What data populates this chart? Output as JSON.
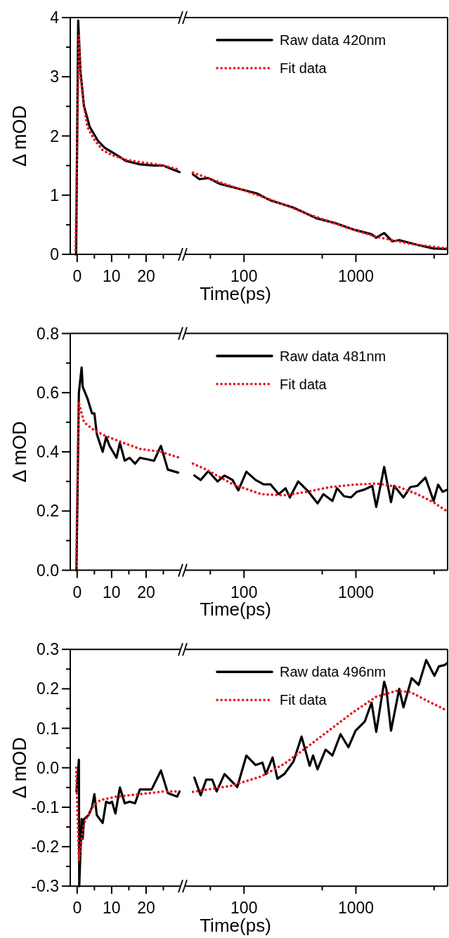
{
  "chart_data": [
    {
      "type": "line",
      "ylabel": "Δ mOD",
      "xlim": [
        -2,
        30
      ],
      "ylim": [
        0,
        4
      ],
      "xticks": [
        0,
        {
          "value": 5,
          "label": null
        },
        10,
        {
          "value": 15,
          "label": null
        },
        20,
        {
          "value": 25,
          "label": null
        }
      ],
      "yticks": [
        0,
        {
          "value": 0.5,
          "label": null
        },
        1,
        {
          "value": 1.5,
          "label": null
        },
        2,
        {
          "value": 2.5,
          "label": null
        },
        3,
        {
          "value": 3.5,
          "label": null
        },
        4
      ],
      "series": [
        {
          "color": "#000000",
          "line_style": "solid",
          "x": [
            -0.3,
            0.3,
            0.95,
            1.96,
            3.6,
            6,
            8,
            11.4,
            14.1,
            18.2,
            22.3,
            25,
            27,
            29.7
          ],
          "values": [
            0,
            3.95,
            3.1,
            2.51,
            2.16,
            1.92,
            1.8,
            1.68,
            1.58,
            1.52,
            1.5,
            1.5,
            1.45,
            1.39
          ]
        },
        {
          "color": "#e8161b",
          "line_style": "dotted",
          "x": [
            -0.5,
            0.5,
            1,
            2,
            3,
            4.7,
            7.4,
            10,
            14,
            18,
            22,
            25,
            29.7
          ],
          "values": [
            0,
            3.7,
            3.0,
            2.5,
            2.15,
            1.96,
            1.76,
            1.68,
            1.6,
            1.56,
            1.53,
            1.5,
            1.43
          ]
        }
      ]
    },
    {
      "type": "line",
      "xlabel": "Time(ps)",
      "log": "x",
      "tick_labels": "x",
      "legend": "top",
      "xlim": [
        30,
        6600
      ],
      "ylim": [
        0,
        4
      ],
      "xticks": [
        {
          "value": 50,
          "label": null
        },
        100,
        {
          "value": 500,
          "label": null
        },
        1000,
        {
          "value": 5000,
          "label": null
        }
      ],
      "series": [
        {
          "name": "Raw data 420nm",
          "color": "#000000",
          "line_style": "solid",
          "x": [
            35,
            40,
            48,
            61,
            74,
            89,
            130,
            173,
            277,
            444,
            647,
            946,
            1380,
            1515,
            1790,
            2110,
            2440,
            3540,
            4920,
            6600
          ],
          "values": [
            1.35,
            1.27,
            1.29,
            1.19,
            1.15,
            1.11,
            1.03,
            0.91,
            0.79,
            0.61,
            0.53,
            0.42,
            0.34,
            0.28,
            0.36,
            0.22,
            0.24,
            0.16,
            0.1,
            0.09
          ]
        },
        {
          "name": "Fit data",
          "color": "#e8161b",
          "line_style": "dotted",
          "x": [
            35,
            60,
            100,
            200,
            400,
            800,
            1500,
            3000,
            6600
          ],
          "values": [
            1.38,
            1.22,
            1.08,
            0.88,
            0.66,
            0.46,
            0.3,
            0.18,
            0.1
          ]
        }
      ]
    },
    {
      "type": "line",
      "ylabel": "Δ mOD",
      "xlim": [
        -2,
        30
      ],
      "ylim": [
        0,
        0.8
      ],
      "xticks": [
        0,
        {
          "value": 5,
          "label": null
        },
        10,
        {
          "value": 15,
          "label": null
        },
        20,
        {
          "value": 25,
          "label": null
        }
      ],
      "yticks": [
        {
          "value": 0,
          "label": "0.0"
        },
        {
          "value": 0.1,
          "label": null
        },
        {
          "value": 0.2,
          "label": "0.2"
        },
        {
          "value": 0.3,
          "label": null
        },
        {
          "value": 0.4,
          "label": "0.4"
        },
        {
          "value": 0.5,
          "label": null
        },
        {
          "value": 0.6,
          "label": "0.6"
        },
        {
          "value": 0.7,
          "label": null
        },
        {
          "value": 0.8,
          "label": "0.8"
        }
      ],
      "series": [
        {
          "color": "#000000",
          "line_style": "solid",
          "x": [
            -0.2,
            0.5,
            1.3,
            1.6,
            3,
            4.3,
            5,
            5.7,
            7.4,
            8.4,
            9.4,
            11.4,
            12.4,
            13.8,
            15.2,
            16.8,
            18.2,
            22.3,
            24.3,
            26.3,
            29.3
          ],
          "values": [
            0,
            0.6,
            0.685,
            0.62,
            0.58,
            0.53,
            0.53,
            0.46,
            0.4,
            0.45,
            0.42,
            0.38,
            0.43,
            0.37,
            0.38,
            0.36,
            0.38,
            0.37,
            0.42,
            0.34,
            0.33
          ]
        },
        {
          "color": "#e8161b",
          "line_style": "dotted",
          "x": [
            -0.3,
            0.4,
            2,
            4.7,
            8,
            13.5,
            18.2,
            24.3,
            29.7
          ],
          "values": [
            0,
            0.57,
            0.5,
            0.475,
            0.455,
            0.43,
            0.41,
            0.4,
            0.38
          ]
        }
      ]
    },
    {
      "type": "line",
      "xlabel": "Time(ps)",
      "log": "x",
      "tick_labels": "x",
      "legend": "top",
      "xlim": [
        30,
        6600
      ],
      "ylim": [
        0,
        0.8
      ],
      "xticks": [
        {
          "value": 50,
          "label": null
        },
        100,
        {
          "value": 500,
          "label": null
        },
        1000,
        {
          "value": 5000,
          "label": null
        }
      ],
      "series": [
        {
          "name": "Raw data 481nm",
          "color": "#000000",
          "line_style": "solid",
          "x": [
            36,
            41,
            48,
            58,
            67,
            79,
            89,
            105,
            127,
            150,
            173,
            204,
            235,
            257,
            305,
            378,
            405,
            455,
            512,
            617,
            678,
            784,
            905,
            1020,
            1200,
            1400,
            1520,
            1790,
            2060,
            2200,
            2660,
            3070,
            3530,
            4180,
            4950,
            5430,
            5960,
            6600
          ],
          "values": [
            0.32,
            0.305,
            0.335,
            0.3,
            0.32,
            0.305,
            0.27,
            0.333,
            0.305,
            0.29,
            0.29,
            0.257,
            0.277,
            0.246,
            0.3,
            0.265,
            0.25,
            0.226,
            0.257,
            0.234,
            0.277,
            0.25,
            0.246,
            0.265,
            0.273,
            0.285,
            0.214,
            0.349,
            0.23,
            0.285,
            0.246,
            0.281,
            0.285,
            0.313,
            0.234,
            0.289,
            0.265,
            0.273
          ]
        },
        {
          "name": "Fit data",
          "color": "#e8161b",
          "line_style": "dotted",
          "x": [
            35,
            46,
            80,
            143,
            225,
            365,
            590,
            946,
            1520,
            2440,
            3540,
            4920,
            6600
          ],
          "values": [
            0.36,
            0.34,
            0.29,
            0.257,
            0.253,
            0.265,
            0.281,
            0.289,
            0.293,
            0.281,
            0.257,
            0.23,
            0.198
          ]
        }
      ]
    },
    {
      "type": "line",
      "ylabel": "Δ mOD",
      "xlim": [
        -2,
        30
      ],
      "ylim": [
        -0.3,
        0.3
      ],
      "xticks": [
        0,
        {
          "value": 5,
          "label": null
        },
        10,
        {
          "value": 15,
          "label": null
        },
        20,
        {
          "value": 25,
          "label": null
        }
      ],
      "yticks": [
        {
          "value": -0.3,
          "label": "-0.3"
        },
        {
          "value": -0.25,
          "label": null
        },
        {
          "value": -0.2,
          "label": "-0.2"
        },
        {
          "value": -0.15,
          "label": null
        },
        {
          "value": -0.1,
          "label": "-0.1"
        },
        {
          "value": -0.05,
          "label": null
        },
        {
          "value": 0,
          "label": "0.0"
        },
        {
          "value": 0.05,
          "label": null
        },
        {
          "value": 0.1,
          "label": "0.1"
        },
        {
          "value": 0.15,
          "label": null
        },
        {
          "value": 0.2,
          "label": "0.2"
        },
        {
          "value": 0.25,
          "label": null
        },
        {
          "value": 0.3,
          "label": "0.3"
        }
      ],
      "series": [
        {
          "color": "#000000",
          "line_style": "solid",
          "x": [
            -0.2,
            0.5,
            0.6,
            1.3,
            1.6,
            2,
            3.3,
            4.3,
            5,
            5.7,
            7.4,
            8.4,
            9.4,
            10.1,
            11.1,
            12.4,
            13.8,
            15.2,
            16.8,
            18.2,
            21.6,
            24.3,
            26.3,
            29,
            29.7
          ],
          "values": [
            -0.06,
            0.02,
            -0.3,
            -0.13,
            -0.18,
            -0.13,
            -0.12,
            -0.1,
            -0.067,
            -0.12,
            -0.14,
            -0.086,
            -0.09,
            -0.086,
            -0.116,
            -0.05,
            -0.09,
            -0.086,
            -0.09,
            -0.055,
            -0.055,
            -0.007,
            -0.064,
            -0.073,
            -0.06
          ]
        },
        {
          "color": "#e8161b",
          "line_style": "dotted",
          "x": [
            -0.3,
            0.5,
            1.3,
            2,
            4.7,
            6.7,
            11.4,
            18.2,
            25,
            29.7
          ],
          "values": [
            0,
            -0.236,
            -0.18,
            -0.14,
            -0.097,
            -0.082,
            -0.073,
            -0.067,
            -0.06,
            -0.06
          ]
        }
      ]
    },
    {
      "type": "line",
      "xlabel": "Time(ps)",
      "log": "x",
      "tick_labels": "x",
      "legend": "top",
      "xlim": [
        30,
        6600
      ],
      "ylim": [
        -0.3,
        0.3
      ],
      "xticks": [
        {
          "value": 50,
          "label": null
        },
        100,
        {
          "value": 500,
          "label": null
        },
        1000,
        {
          "value": 5000,
          "label": null
        }
      ],
      "series": [
        {
          "name": "Raw data 496nm",
          "color": "#000000",
          "line_style": "solid",
          "x": [
            36,
            41,
            46,
            52,
            57,
            67,
            79,
            87,
            105,
            127,
            146,
            157,
            180,
            199,
            229,
            277,
            327,
            386,
            414,
            454,
            536,
            617,
            729,
            857,
            994,
            1200,
            1380,
            1520,
            1790,
            1870,
            2060,
            2440,
            2660,
            3150,
            3640,
            4250,
            5030,
            5520,
            6180,
            6600
          ],
          "values": [
            -0.025,
            -0.07,
            -0.03,
            -0.03,
            -0.06,
            -0.016,
            -0.037,
            -0.049,
            0.031,
            0.007,
            0.013,
            -0.016,
            0.026,
            -0.028,
            -0.016,
            0.016,
            0.079,
            0.005,
            0.031,
            -0.004,
            0.046,
            0.031,
            0.085,
            0.052,
            0.094,
            0.117,
            0.165,
            0.091,
            0.218,
            0.2,
            0.094,
            0.2,
            0.153,
            0.227,
            0.21,
            0.273,
            0.233,
            0.257,
            0.26,
            0.266
          ]
        },
        {
          "name": "Fit data",
          "color": "#e8161b",
          "line_style": "dotted",
          "x": [
            35,
            76,
            143,
            229,
            365,
            590,
            946,
            1520,
            2320,
            3070,
            4250,
            6600
          ],
          "values": [
            -0.061,
            -0.046,
            -0.022,
            0.01,
            0.052,
            0.097,
            0.141,
            0.18,
            0.195,
            0.192,
            0.171,
            0.144
          ]
        }
      ]
    }
  ]
}
